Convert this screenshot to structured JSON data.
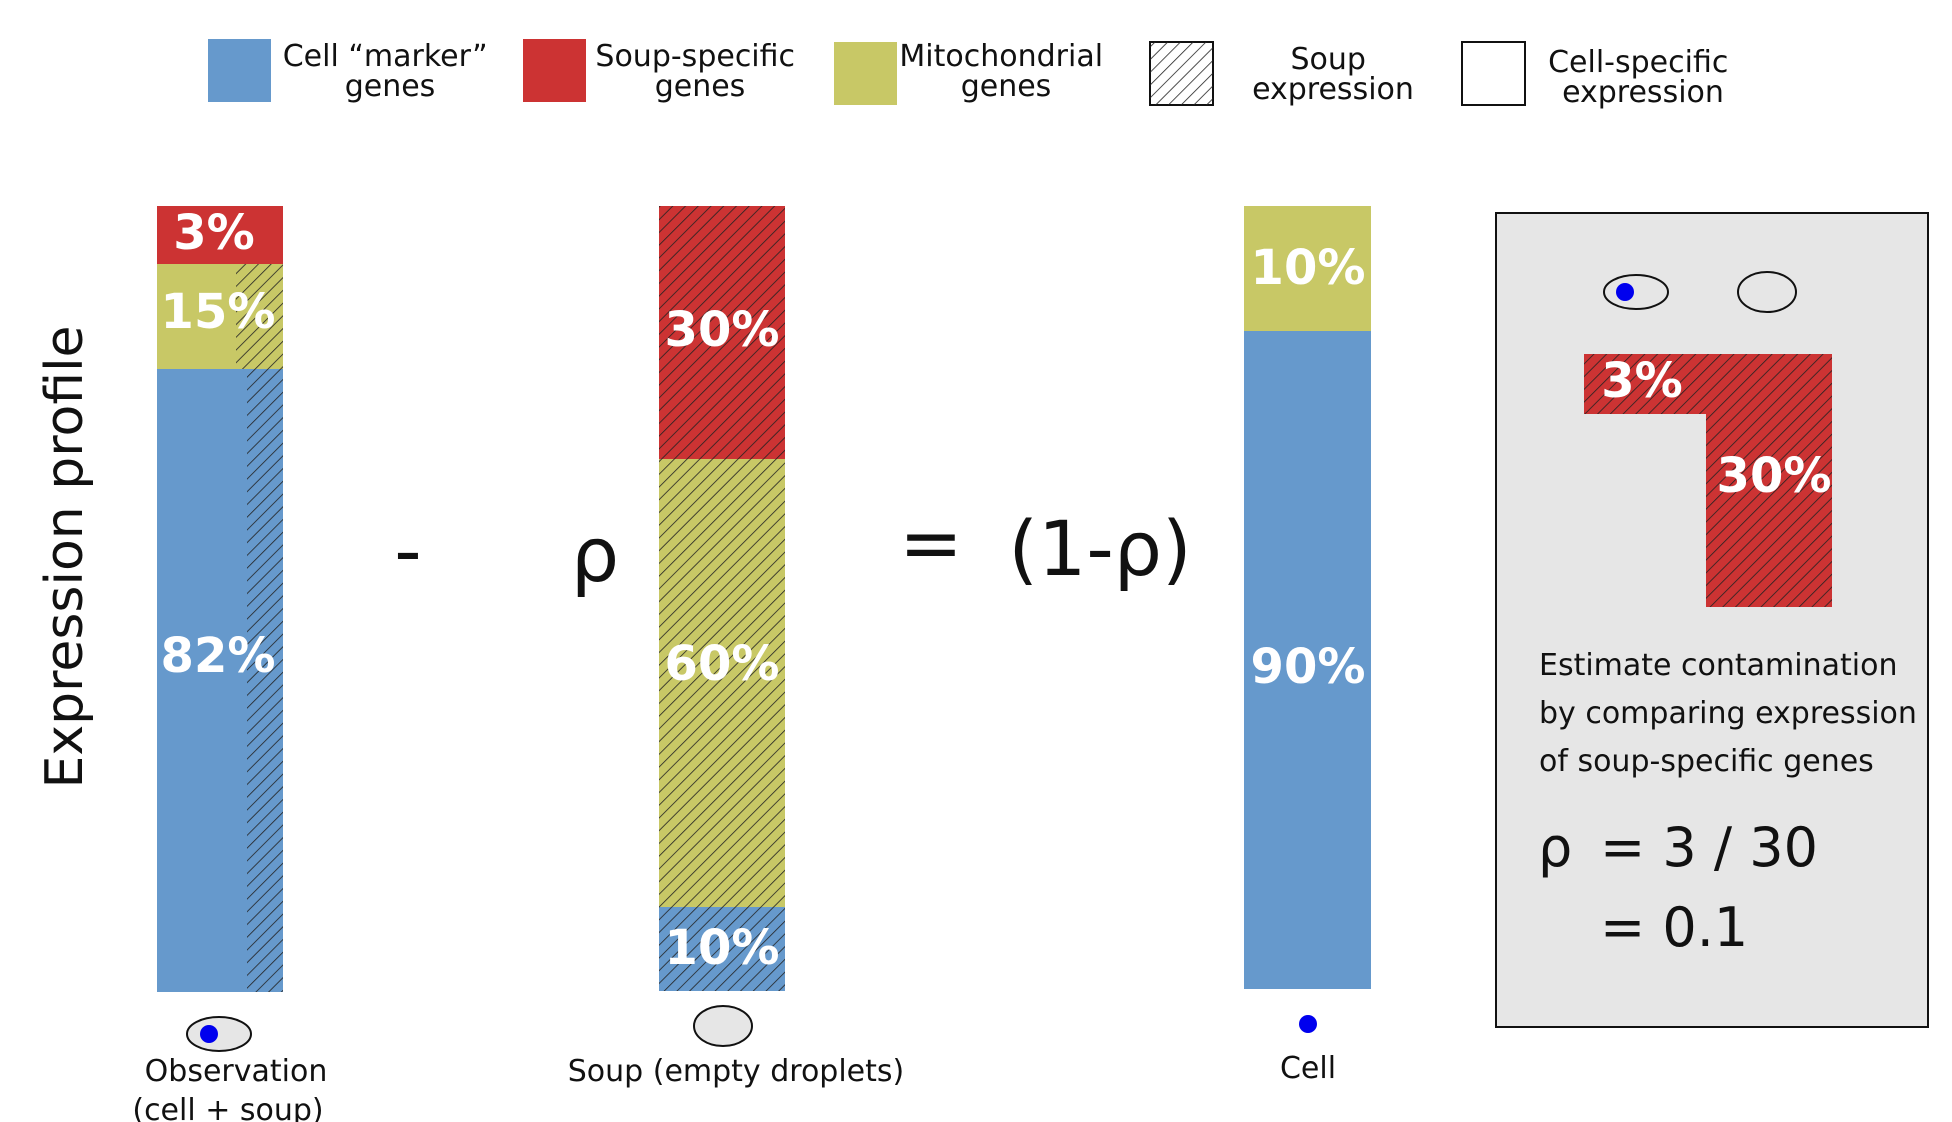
{
  "legend": {
    "cell_marker": "Cell “marker” genes",
    "soup_specific": "Soup-specific genes",
    "mitochondrial": "Mitochondrial genes",
    "soup_expression": "Soup expression",
    "cell_specific_expression": "Cell-specific expression"
  },
  "colors": {
    "marker_blue": "#6699cc",
    "soup_red": "#cc3333",
    "mito_yellow": "#c8c866",
    "panel_gray": "#e6e6e6",
    "dot_blue": "#0000ee"
  },
  "axis": {
    "y_title": "Expression profile"
  },
  "observation": {
    "soup_specific_pct": "3%",
    "mito_pct": "15%",
    "marker_pct": "82%",
    "caption_line1": "Observation",
    "caption_line2": "(cell + soup)"
  },
  "soup": {
    "soup_specific_pct": "30%",
    "mito_pct": "60%",
    "marker_pct": "10%",
    "caption": "Soup (empty droplets)"
  },
  "cell": {
    "mito_pct": "10%",
    "marker_pct": "90%",
    "caption": "Cell"
  },
  "operators": {
    "minus": "-",
    "rho": "ρ",
    "equals": "=",
    "one_minus_rho": "(1-ρ)"
  },
  "panel": {
    "obs_pct": "3%",
    "soup_pct": "30%",
    "desc_line1": "Estimate contamination",
    "desc_line2": "by comparing expression",
    "desc_line3": "of soup-specific genes",
    "formula_rho": "ρ",
    "formula_line1": "= 3 / 30",
    "formula_line2": "= 0.1"
  }
}
